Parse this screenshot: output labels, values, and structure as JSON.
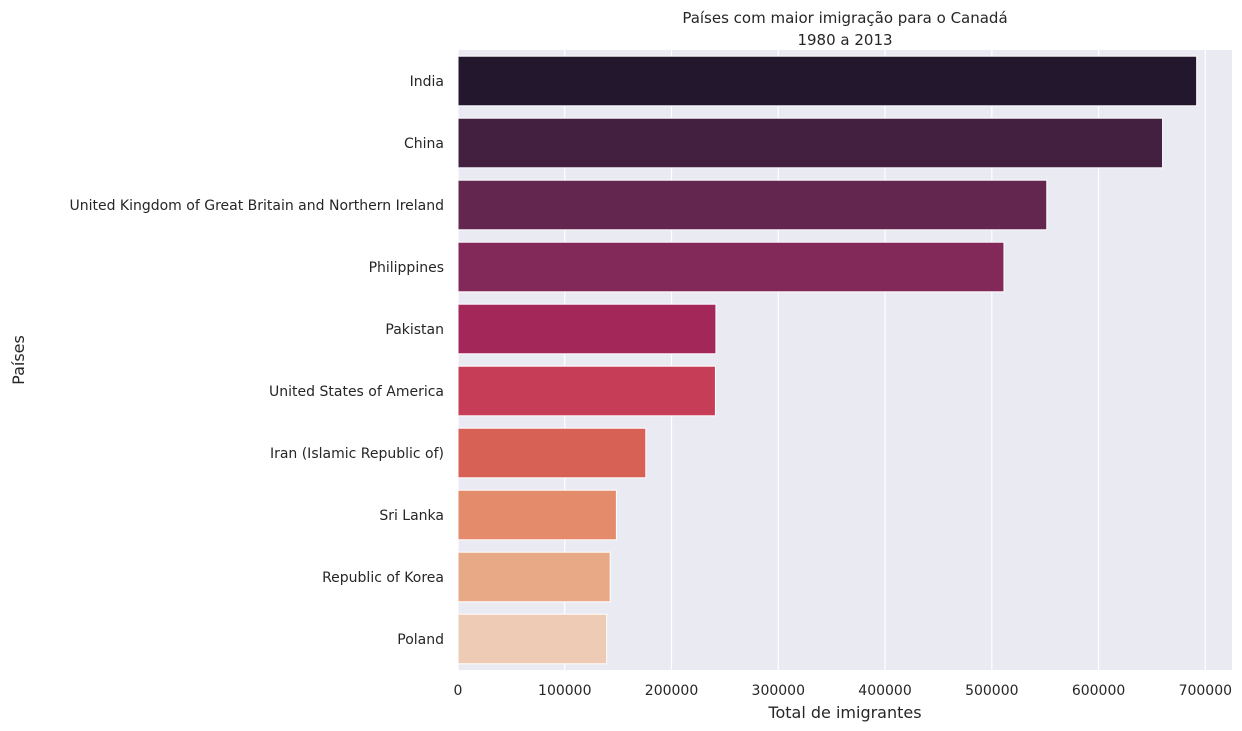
{
  "chart_data": {
    "type": "bar",
    "orientation": "horizontal",
    "title": "Países com maior imigração para o Canadá",
    "subtitle": "1980 a 2013",
    "xlabel": "Total de imigrantes",
    "ylabel": "Países",
    "xlim": [
      0,
      725000
    ],
    "xticks": [
      0,
      100000,
      200000,
      300000,
      400000,
      500000,
      600000,
      700000
    ],
    "xtick_labels": [
      "0",
      "100000",
      "200000",
      "300000",
      "400000",
      "500000",
      "600000",
      "700000"
    ],
    "grid": true,
    "categories": [
      "India",
      "China",
      "United Kingdom of Great Britain and Northern Ireland",
      "Philippines",
      "Pakistan",
      "United States of America",
      "Iran (Islamic Republic of)",
      "Sri Lanka",
      "Republic of Korea",
      "Poland"
    ],
    "values": [
      691904,
      659962,
      551500,
      511391,
      241600,
      241122,
      175923,
      148358,
      142581,
      139241
    ],
    "colors": [
      "#23172e",
      "#43203f",
      "#62264f",
      "#83295a",
      "#a4275a",
      "#c53d56",
      "#d86155",
      "#e38b6b",
      "#e8a987",
      "#eecbb4"
    ],
    "background": "#eaeaf2",
    "grid_color": "#ffffff"
  }
}
